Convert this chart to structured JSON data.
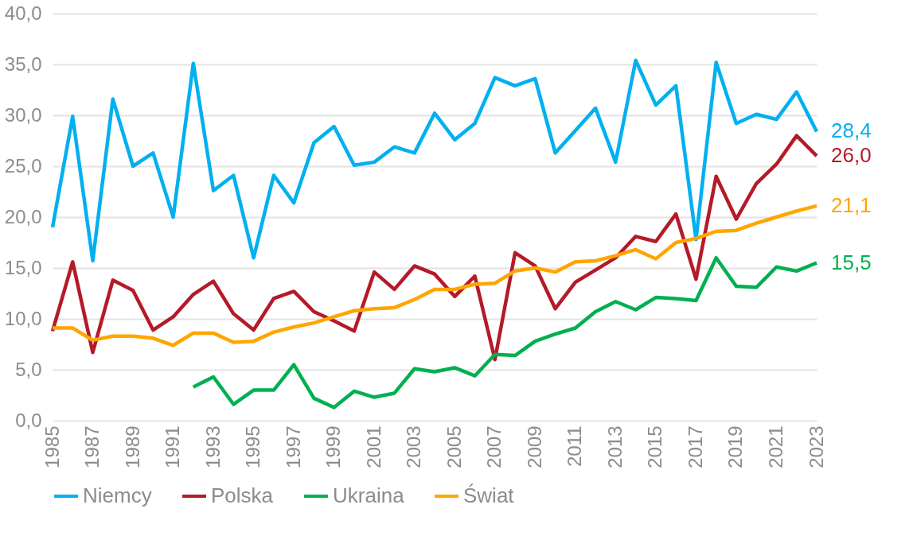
{
  "chart_data": {
    "type": "line",
    "x": [
      1985,
      1986,
      1987,
      1988,
      1989,
      1990,
      1991,
      1992,
      1993,
      1994,
      1995,
      1996,
      1997,
      1998,
      1999,
      2000,
      2001,
      2002,
      2003,
      2004,
      2005,
      2006,
      2007,
      2008,
      2009,
      2010,
      2011,
      2012,
      2013,
      2014,
      2015,
      2016,
      2017,
      2018,
      2019,
      2020,
      2021,
      2022,
      2023
    ],
    "series": [
      {
        "name": "Niemcy",
        "color": "#00b0f0",
        "values": [
          19.0,
          29.9,
          15.7,
          31.6,
          25.0,
          26.3,
          20.0,
          35.1,
          22.6,
          24.1,
          16.0,
          24.1,
          21.4,
          27.3,
          28.9,
          25.1,
          25.4,
          26.9,
          26.3,
          30.2,
          27.6,
          29.2,
          33.7,
          32.9,
          33.6,
          26.3,
          28.5,
          30.7,
          25.4,
          35.4,
          31.0,
          32.9,
          17.8,
          35.2,
          29.2,
          30.1,
          29.6,
          32.3,
          28.4
        ],
        "value_labels": [
          null,
          null,
          null,
          null,
          null,
          null,
          null,
          null,
          null,
          null,
          null,
          null,
          null,
          null,
          null,
          null,
          null,
          null,
          null,
          null,
          null,
          null,
          null,
          null,
          null,
          null,
          null,
          null,
          null,
          null,
          null,
          null,
          null,
          null,
          null,
          null,
          null,
          null,
          "28,4"
        ]
      },
      {
        "name": "Polska",
        "color": "#b51a28",
        "values": [
          8.8,
          15.6,
          6.7,
          13.8,
          12.8,
          8.9,
          10.2,
          12.4,
          13.7,
          10.5,
          8.9,
          12.0,
          12.7,
          10.7,
          9.8,
          8.8,
          14.6,
          12.9,
          15.2,
          14.4,
          12.2,
          14.2,
          6.0,
          16.5,
          15.2,
          11.0,
          13.6,
          14.8,
          16.0,
          18.1,
          17.6,
          20.3,
          13.9,
          24.0,
          19.8,
          23.3,
          25.2,
          28.0,
          26.0
        ],
        "value_labels": [
          null,
          null,
          null,
          null,
          null,
          null,
          null,
          null,
          null,
          null,
          null,
          null,
          null,
          null,
          null,
          null,
          null,
          null,
          null,
          null,
          null,
          null,
          null,
          null,
          null,
          null,
          null,
          null,
          null,
          null,
          null,
          null,
          null,
          null,
          null,
          null,
          null,
          null,
          "26,0"
        ]
      },
      {
        "name": "Ukraina",
        "color": "#00b050",
        "values": [
          null,
          null,
          null,
          null,
          null,
          null,
          null,
          3.3,
          4.3,
          1.6,
          3.0,
          3.0,
          5.5,
          2.2,
          1.3,
          2.9,
          2.3,
          2.7,
          5.1,
          4.8,
          5.2,
          4.4,
          6.5,
          6.4,
          7.8,
          8.5,
          9.1,
          10.7,
          11.7,
          10.9,
          12.1,
          12.0,
          11.8,
          16.0,
          13.2,
          13.1,
          15.1,
          14.7,
          15.5
        ],
        "value_labels": [
          null,
          null,
          null,
          null,
          null,
          null,
          null,
          null,
          null,
          null,
          null,
          null,
          null,
          null,
          null,
          null,
          null,
          null,
          null,
          null,
          null,
          null,
          null,
          null,
          null,
          null,
          null,
          null,
          null,
          null,
          null,
          null,
          null,
          null,
          null,
          null,
          null,
          null,
          "15,5"
        ]
      },
      {
        "name": "Świat",
        "color": "#ffa500",
        "values": [
          9.1,
          9.1,
          7.9,
          8.3,
          8.3,
          8.1,
          7.4,
          8.6,
          8.6,
          7.7,
          7.8,
          8.7,
          9.2,
          9.6,
          10.2,
          10.8,
          11.0,
          11.1,
          11.9,
          12.9,
          12.9,
          13.4,
          13.5,
          14.7,
          15.0,
          14.6,
          15.6,
          15.7,
          16.2,
          16.8,
          15.9,
          17.5,
          17.9,
          18.6,
          18.7,
          19.4,
          20.0,
          20.6,
          21.1
        ],
        "value_labels": [
          null,
          null,
          null,
          null,
          null,
          null,
          null,
          null,
          null,
          null,
          null,
          null,
          null,
          null,
          null,
          null,
          null,
          null,
          null,
          null,
          null,
          null,
          null,
          null,
          null,
          null,
          null,
          null,
          null,
          null,
          null,
          null,
          null,
          null,
          null,
          null,
          null,
          null,
          "21,1"
        ]
      }
    ],
    "xlim": [
      1985,
      2023
    ],
    "xticks": [
      1985,
      1987,
      1989,
      1991,
      1993,
      1995,
      1997,
      1999,
      2001,
      2003,
      2005,
      2007,
      2009,
      2011,
      2013,
      2015,
      2017,
      2019,
      2021,
      2023
    ],
    "ylim": [
      0,
      40
    ],
    "yticks": [
      {
        "value": 0,
        "label": "0,0"
      },
      {
        "value": 5,
        "label": "5,0"
      },
      {
        "value": 10,
        "label": "10,0"
      },
      {
        "value": 15,
        "label": "15,0"
      },
      {
        "value": 20,
        "label": "20,0"
      },
      {
        "value": 25,
        "label": "25,0"
      },
      {
        "value": 30,
        "label": "30,0"
      },
      {
        "value": 35,
        "label": "35,0"
      },
      {
        "value": 40,
        "label": "40,0"
      }
    ],
    "grid": "y",
    "legend": "bottom",
    "line_style": "solid"
  }
}
